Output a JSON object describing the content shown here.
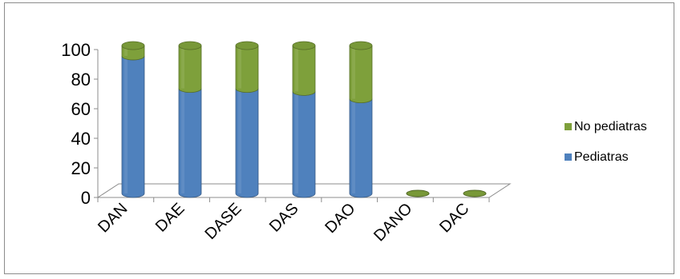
{
  "chart_data": {
    "type": "bar",
    "stacked": true,
    "style": "3d-cylinder",
    "title": "",
    "xlabel": "",
    "ylabel": "",
    "ylim": [
      0,
      100
    ],
    "yticks": [
      0,
      20,
      40,
      60,
      80,
      100
    ],
    "categories": [
      "DAN",
      "DAE",
      "DASE",
      "DAS",
      "DAO",
      "DANO",
      "DAC"
    ],
    "series": [
      {
        "name": "Pediatras",
        "color": "#4F81BD",
        "values": [
          93,
          71,
          71,
          69,
          64,
          0,
          0
        ]
      },
      {
        "name": "No pediatras",
        "color": "#7EA03B",
        "values": [
          7,
          29,
          29,
          31,
          36,
          0,
          0
        ]
      }
    ],
    "legend": {
      "position": "right",
      "order": [
        "No pediatras",
        "Pediatras"
      ]
    },
    "grid": false
  }
}
